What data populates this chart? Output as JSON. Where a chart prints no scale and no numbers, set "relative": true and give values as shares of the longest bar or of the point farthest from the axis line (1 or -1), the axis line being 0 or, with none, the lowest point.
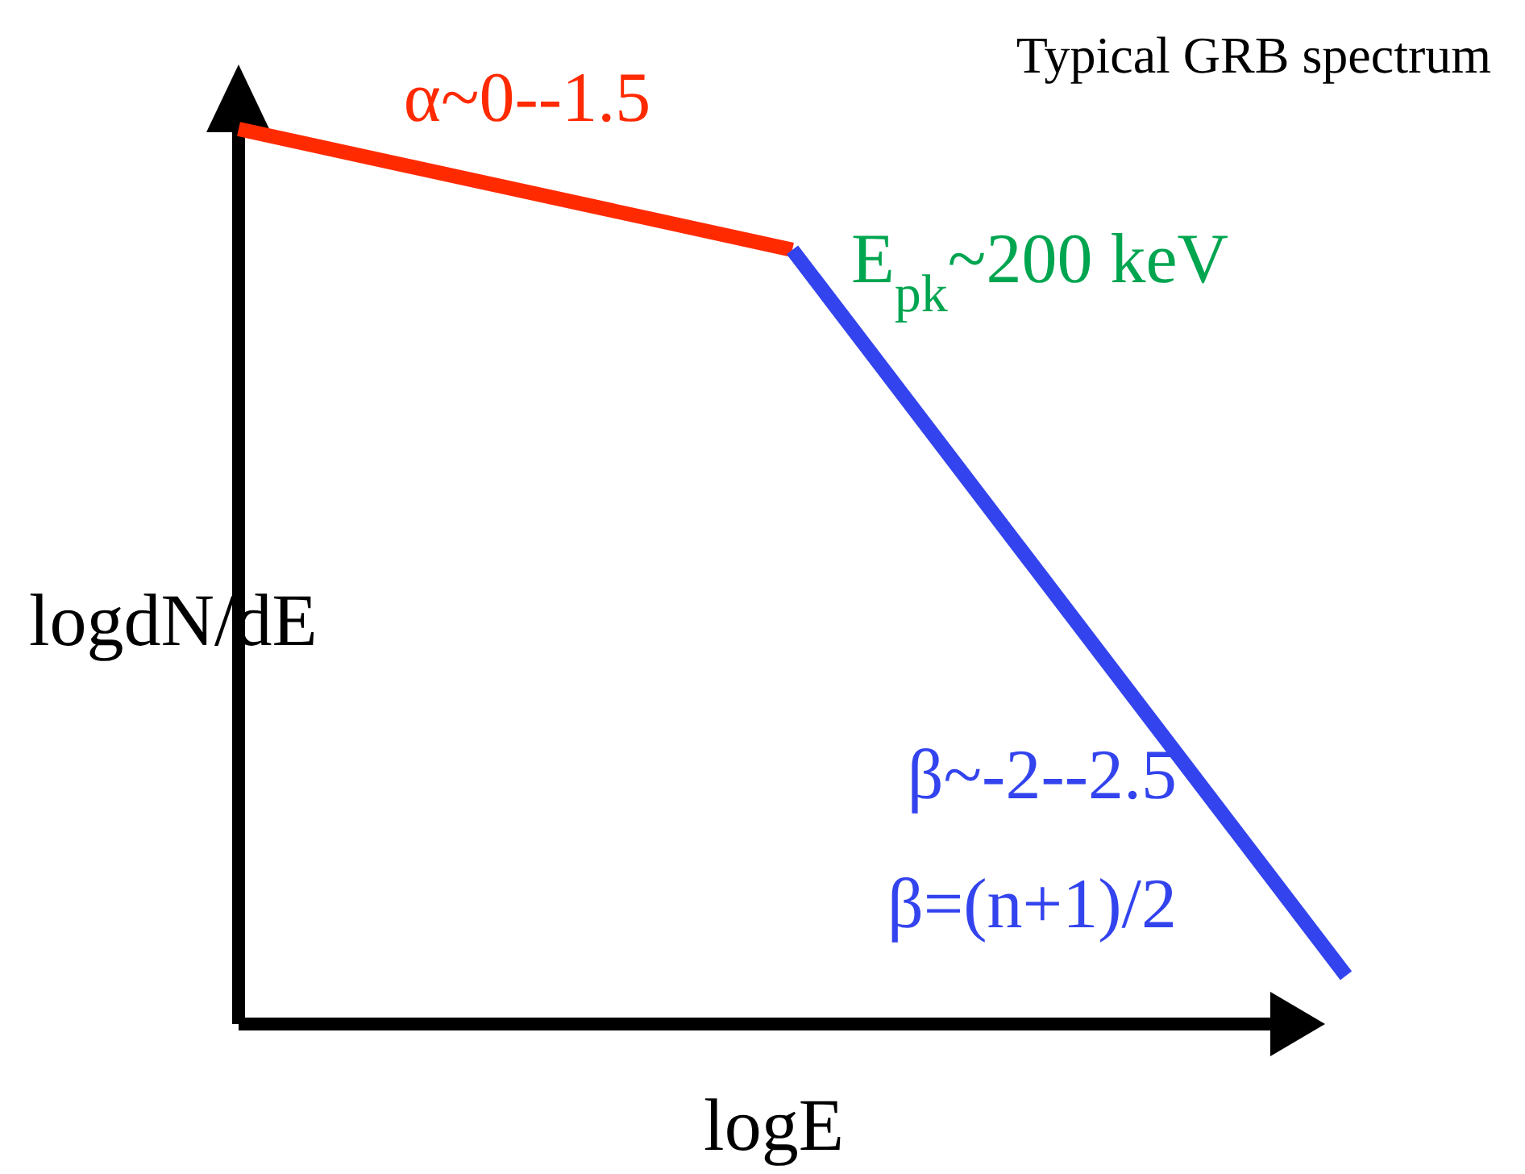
{
  "chart_data": {
    "type": "line",
    "relative": true,
    "title": "Typical GRB spectrum",
    "xlabel": "logE",
    "ylabel": "logdN/dE",
    "categories": [
      null,
      null,
      null
    ],
    "series": [
      {
        "color": "#ff2a00",
        "values": [
          1,
          0.865,
          null
        ]
      },
      {
        "color": "#3344ee",
        "values": [
          null,
          0.865,
          0.054
        ]
      }
    ],
    "annotations": [
      "α~0--1.5",
      "E$_{pk}$~200 keV",
      "β~-2--2.5",
      "β=(n+1)/2"
    ],
    "marker": "none",
    "line_style": "solid"
  }
}
